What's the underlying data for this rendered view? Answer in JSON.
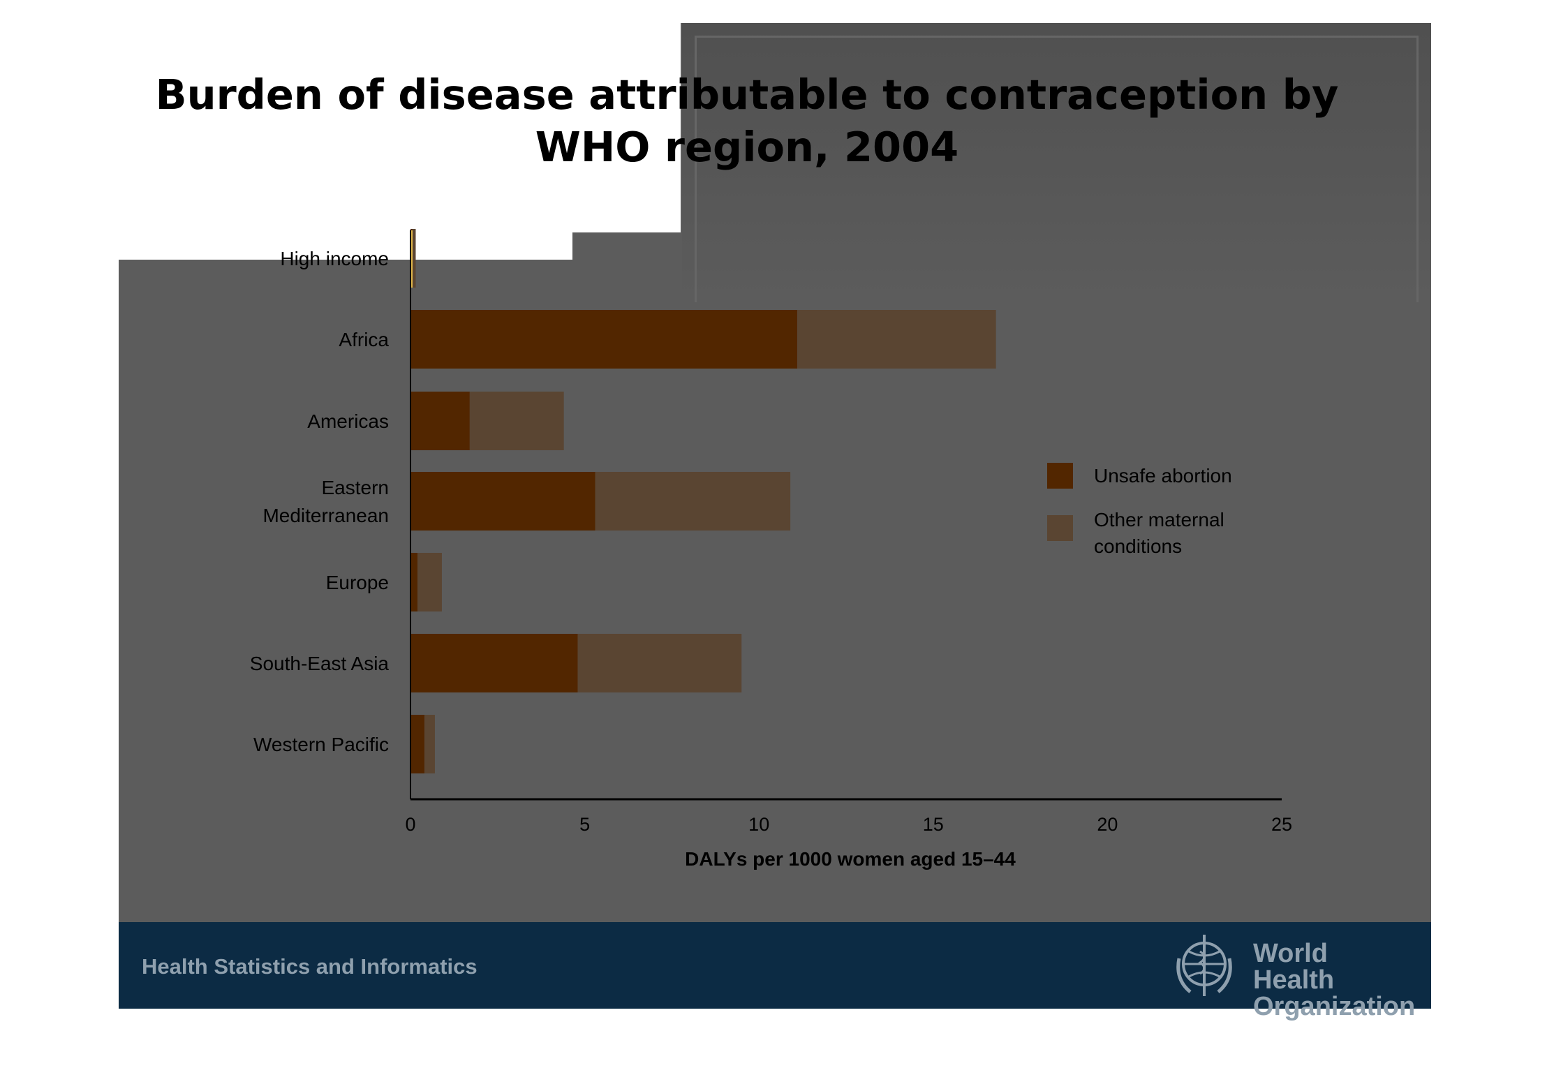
{
  "title": "Burden of disease attributable to contraception by WHO region, 2004",
  "chart_data": {
    "type": "bar",
    "orientation": "horizontal",
    "stacked": true,
    "categories": [
      "High income",
      "Africa",
      "Americas",
      "Eastern Mediterranean",
      "Europe",
      "South-East Asia",
      "Western Pacific"
    ],
    "series": [
      {
        "name": "Unsafe abortion",
        "color": "#522600",
        "values": [
          0.05,
          11.1,
          1.7,
          5.3,
          0.2,
          4.8,
          0.4
        ]
      },
      {
        "name": "Other maternal conditions",
        "color": "#5a4532",
        "values": [
          0.1,
          5.7,
          2.7,
          5.6,
          0.7,
          4.7,
          0.3
        ]
      }
    ],
    "xlabel": "DALYs per 1000 women aged 15–44",
    "xlim": [
      0,
      25
    ],
    "xticks": [
      "0",
      "5",
      "10",
      "15",
      "20",
      "25"
    ],
    "legend_position": "right",
    "grid": false
  },
  "footer": {
    "section_label": "Health Statistics and Informatics",
    "org_name_line1": "World Health",
    "org_name_line2": "Organization",
    "logo_icon": "who-emblem-icon"
  }
}
